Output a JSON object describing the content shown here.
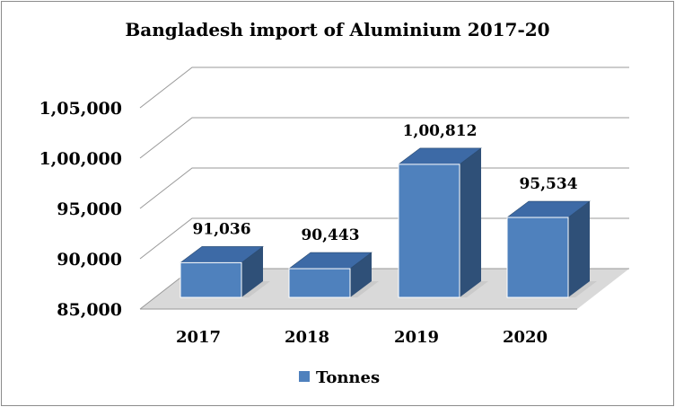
{
  "chart_data": {
    "type": "bar",
    "title": "Bangladesh import of Aluminium 2017-20",
    "categories": [
      "2017",
      "2018",
      "2019",
      "2020"
    ],
    "series": [
      {
        "name": "Tonnes",
        "values": [
          91036,
          90443,
          100812,
          95534
        ]
      }
    ],
    "value_labels": [
      "91,036",
      "90,443",
      "1,00,812",
      "95,534"
    ],
    "ylim": [
      85000,
      105000
    ],
    "yticks": [
      85000,
      90000,
      95000,
      100000,
      105000
    ],
    "ytick_labels": [
      "85,000",
      "90,000",
      "95,000",
      "1,00,000",
      "1,05,000"
    ],
    "grid": true,
    "three_d": true,
    "legend_position": "bottom",
    "colors": {
      "front": "#4f81bd",
      "top": "#3d6aa6",
      "side": "#2f5078",
      "grid": "#999999",
      "shadow": "#d9d9d9"
    }
  }
}
